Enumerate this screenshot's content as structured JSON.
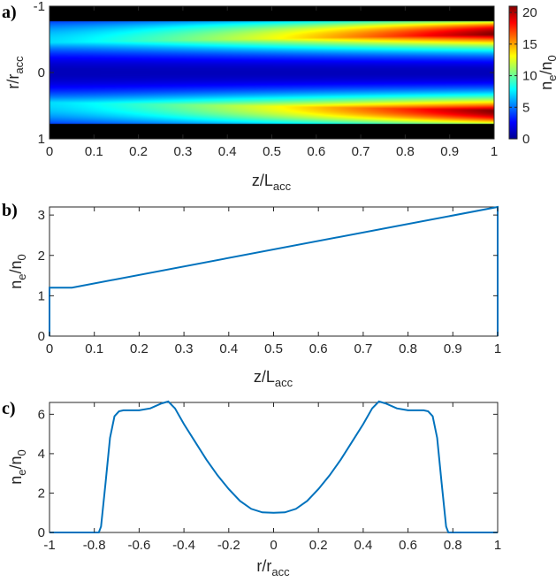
{
  "chart_data": [
    {
      "type": "heatmap",
      "panel_label": "a)",
      "xlabel": "z/L",
      "xlabel_sub": "acc",
      "ylabel": "r/r",
      "ylabel_sub": "acc",
      "xlim": [
        0,
        1
      ],
      "ylim": [
        -1,
        1
      ],
      "x_ticks": [
        "0",
        "0.1",
        "0.2",
        "0.3",
        "0.4",
        "0.5",
        "0.6",
        "0.7",
        "0.8",
        "0.9",
        "1"
      ],
      "y_ticks": [
        "-1",
        "0",
        "1"
      ],
      "colorbar": {
        "label": "n",
        "label_sub1": "e",
        "label_mid": "/n",
        "label_sub2": "0",
        "range": [
          0,
          21
        ],
        "ticks": [
          "0",
          "5",
          "10",
          "15",
          "20"
        ],
        "colormap": "jet"
      },
      "plasma_edge_r": 0.77,
      "density_on_axis": 1.2,
      "density_peak_entry": 7.2,
      "density_peak_exit": 21.0
    },
    {
      "type": "line",
      "panel_label": "b)",
      "xlabel": "z/L",
      "xlabel_sub": "acc",
      "ylabel": "n",
      "ylabel_sub1": "e",
      "ylabel_mid": "/n",
      "ylabel_sub2": "0",
      "xlim": [
        0,
        1
      ],
      "ylim": [
        0,
        3.2
      ],
      "x_ticks": [
        "0",
        "0.1",
        "0.2",
        "0.3",
        "0.4",
        "0.5",
        "0.6",
        "0.7",
        "0.8",
        "0.9",
        "1"
      ],
      "y_ticks": [
        "0",
        "1",
        "2",
        "3"
      ],
      "series": [
        {
          "name": "density",
          "color": "#0072BD",
          "x": [
            0,
            0,
            0.05,
            1,
            1
          ],
          "y": [
            0,
            1.2,
            1.2,
            3.2,
            0
          ]
        }
      ]
    },
    {
      "type": "line",
      "panel_label": "c)",
      "xlabel": "r/r",
      "xlabel_sub": "acc",
      "ylabel": "n",
      "ylabel_sub1": "e",
      "ylabel_mid": "/n",
      "ylabel_sub2": "0",
      "xlim": [
        -1,
        1
      ],
      "ylim": [
        0,
        6.6
      ],
      "x_ticks": [
        "-1",
        "-0.8",
        "-0.6",
        "-0.4",
        "-0.2",
        "0",
        "0.2",
        "0.4",
        "0.6",
        "0.8",
        "1"
      ],
      "y_ticks": [
        "0",
        "2",
        "4",
        "6"
      ],
      "series": [
        {
          "name": "radial profile",
          "color": "#0072BD",
          "x": [
            -1,
            -0.78,
            -0.77,
            -0.75,
            -0.73,
            -0.71,
            -0.69,
            -0.67,
            -0.65,
            -0.6,
            -0.55,
            -0.5,
            -0.47,
            -0.44,
            -0.4,
            -0.35,
            -0.3,
            -0.25,
            -0.2,
            -0.15,
            -0.1,
            -0.05,
            0,
            0.05,
            0.1,
            0.15,
            0.2,
            0.25,
            0.3,
            0.35,
            0.4,
            0.44,
            0.47,
            0.5,
            0.55,
            0.6,
            0.65,
            0.67,
            0.69,
            0.71,
            0.73,
            0.75,
            0.77,
            0.78,
            1
          ],
          "y": [
            0,
            0,
            0.3,
            2.5,
            4.8,
            5.9,
            6.15,
            6.2,
            6.2,
            6.2,
            6.3,
            6.55,
            6.65,
            6.3,
            5.5,
            4.6,
            3.7,
            2.9,
            2.2,
            1.6,
            1.2,
            1.02,
            1.0,
            1.02,
            1.2,
            1.6,
            2.2,
            2.9,
            3.7,
            4.6,
            5.5,
            6.3,
            6.65,
            6.55,
            6.3,
            6.2,
            6.2,
            6.2,
            6.15,
            5.9,
            4.8,
            2.5,
            0.3,
            0,
            0
          ]
        }
      ]
    }
  ]
}
